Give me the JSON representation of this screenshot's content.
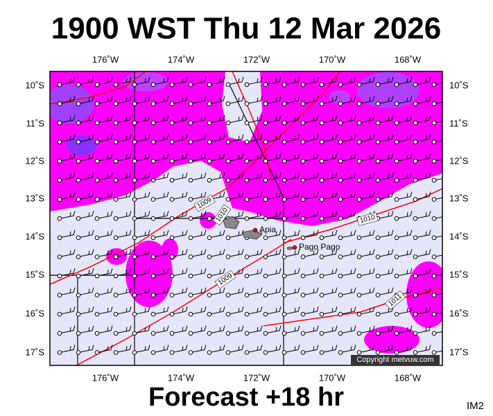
{
  "title": "1900 WST Thu 12 Mar 2026",
  "map": {
    "longitude_labels": [
      "176˚W",
      "174˚W",
      "172˚W",
      "170˚W",
      "168˚W"
    ],
    "latitude_labels": [
      "10˚S",
      "11˚S",
      "12˚S",
      "13˚S",
      "14˚S",
      "15˚S",
      "16˚S",
      "17˚S"
    ],
    "isobar_labels": [
      "1009",
      "1010",
      "1010",
      "1009",
      "1011"
    ],
    "places": [
      "Apia",
      "Pago Pago"
    ],
    "copyright": "Copyright metvuw.com"
  },
  "footer": {
    "forecast": "Forecast +18 hr",
    "image_id": "IM2"
  }
}
